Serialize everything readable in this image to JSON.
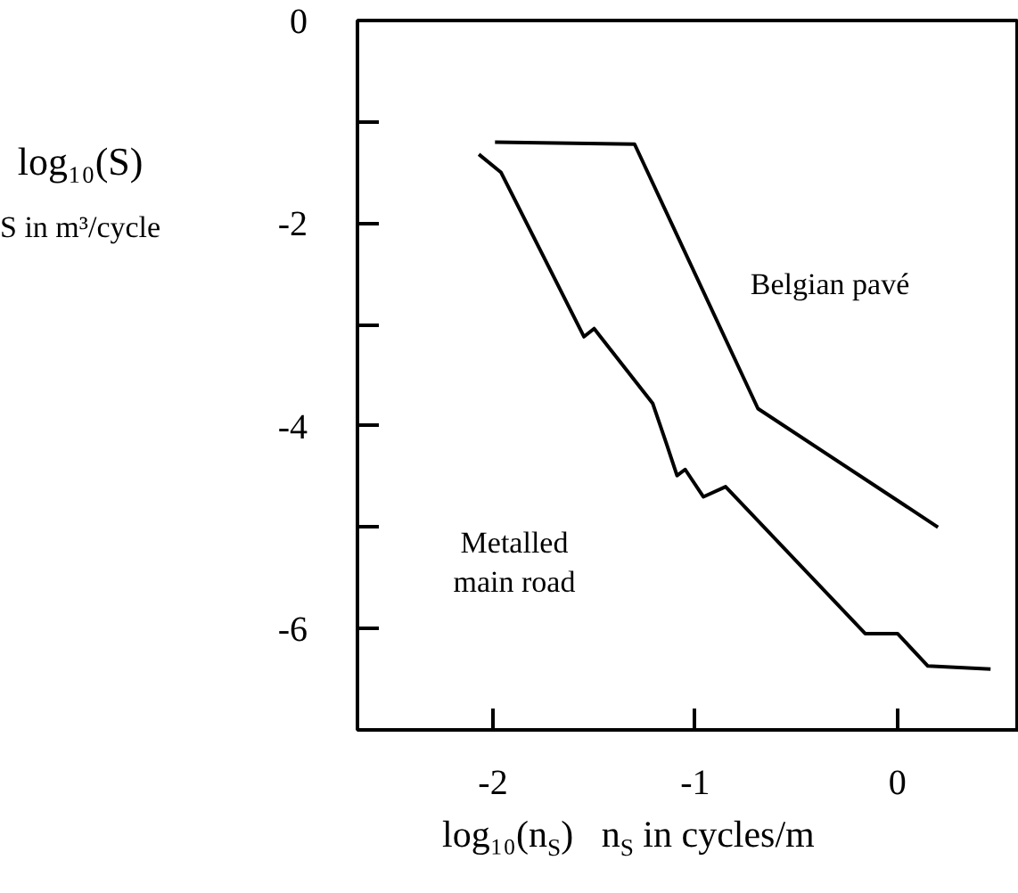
{
  "chart_data": {
    "type": "line",
    "xlabel": "log₁₀(n$_{S}$) n$_{S}$ in cycles/m",
    "ylabel": "log₁₀(S)\nS in m³/cycle",
    "xlim": [
      -2.67,
      0.6
    ],
    "ylim": [
      -7,
      0
    ],
    "xticks": [
      -2,
      -1,
      0
    ],
    "yticks": [
      0,
      {
        "value": -1,
        "label": null
      },
      -2,
      {
        "value": -3,
        "label": null
      },
      -4,
      {
        "value": -5,
        "label": null
      },
      -6
    ],
    "series": [
      {
        "color": "#000000",
        "x": [
          -1.99,
          -1.3,
          -0.69,
          0.2
        ],
        "values": [
          -1.2,
          -1.22,
          -3.83,
          -5.0
        ]
      },
      {
        "color": "#000000",
        "x": [
          -2.07,
          -1.96,
          -1.55,
          -1.5,
          -1.21,
          -1.14,
          -1.09,
          -1.05,
          -0.96,
          -0.85,
          -0.16,
          0.0,
          0.15,
          0.46
        ],
        "values": [
          -1.32,
          -1.5,
          -3.12,
          -3.04,
          -3.78,
          -4.19,
          -4.49,
          -4.43,
          -4.7,
          -4.6,
          -6.05,
          -6.05,
          -6.37,
          -6.4
        ]
      }
    ],
    "annotations": [
      "Belgian pavé",
      "Metalled\nmain road"
    ]
  }
}
